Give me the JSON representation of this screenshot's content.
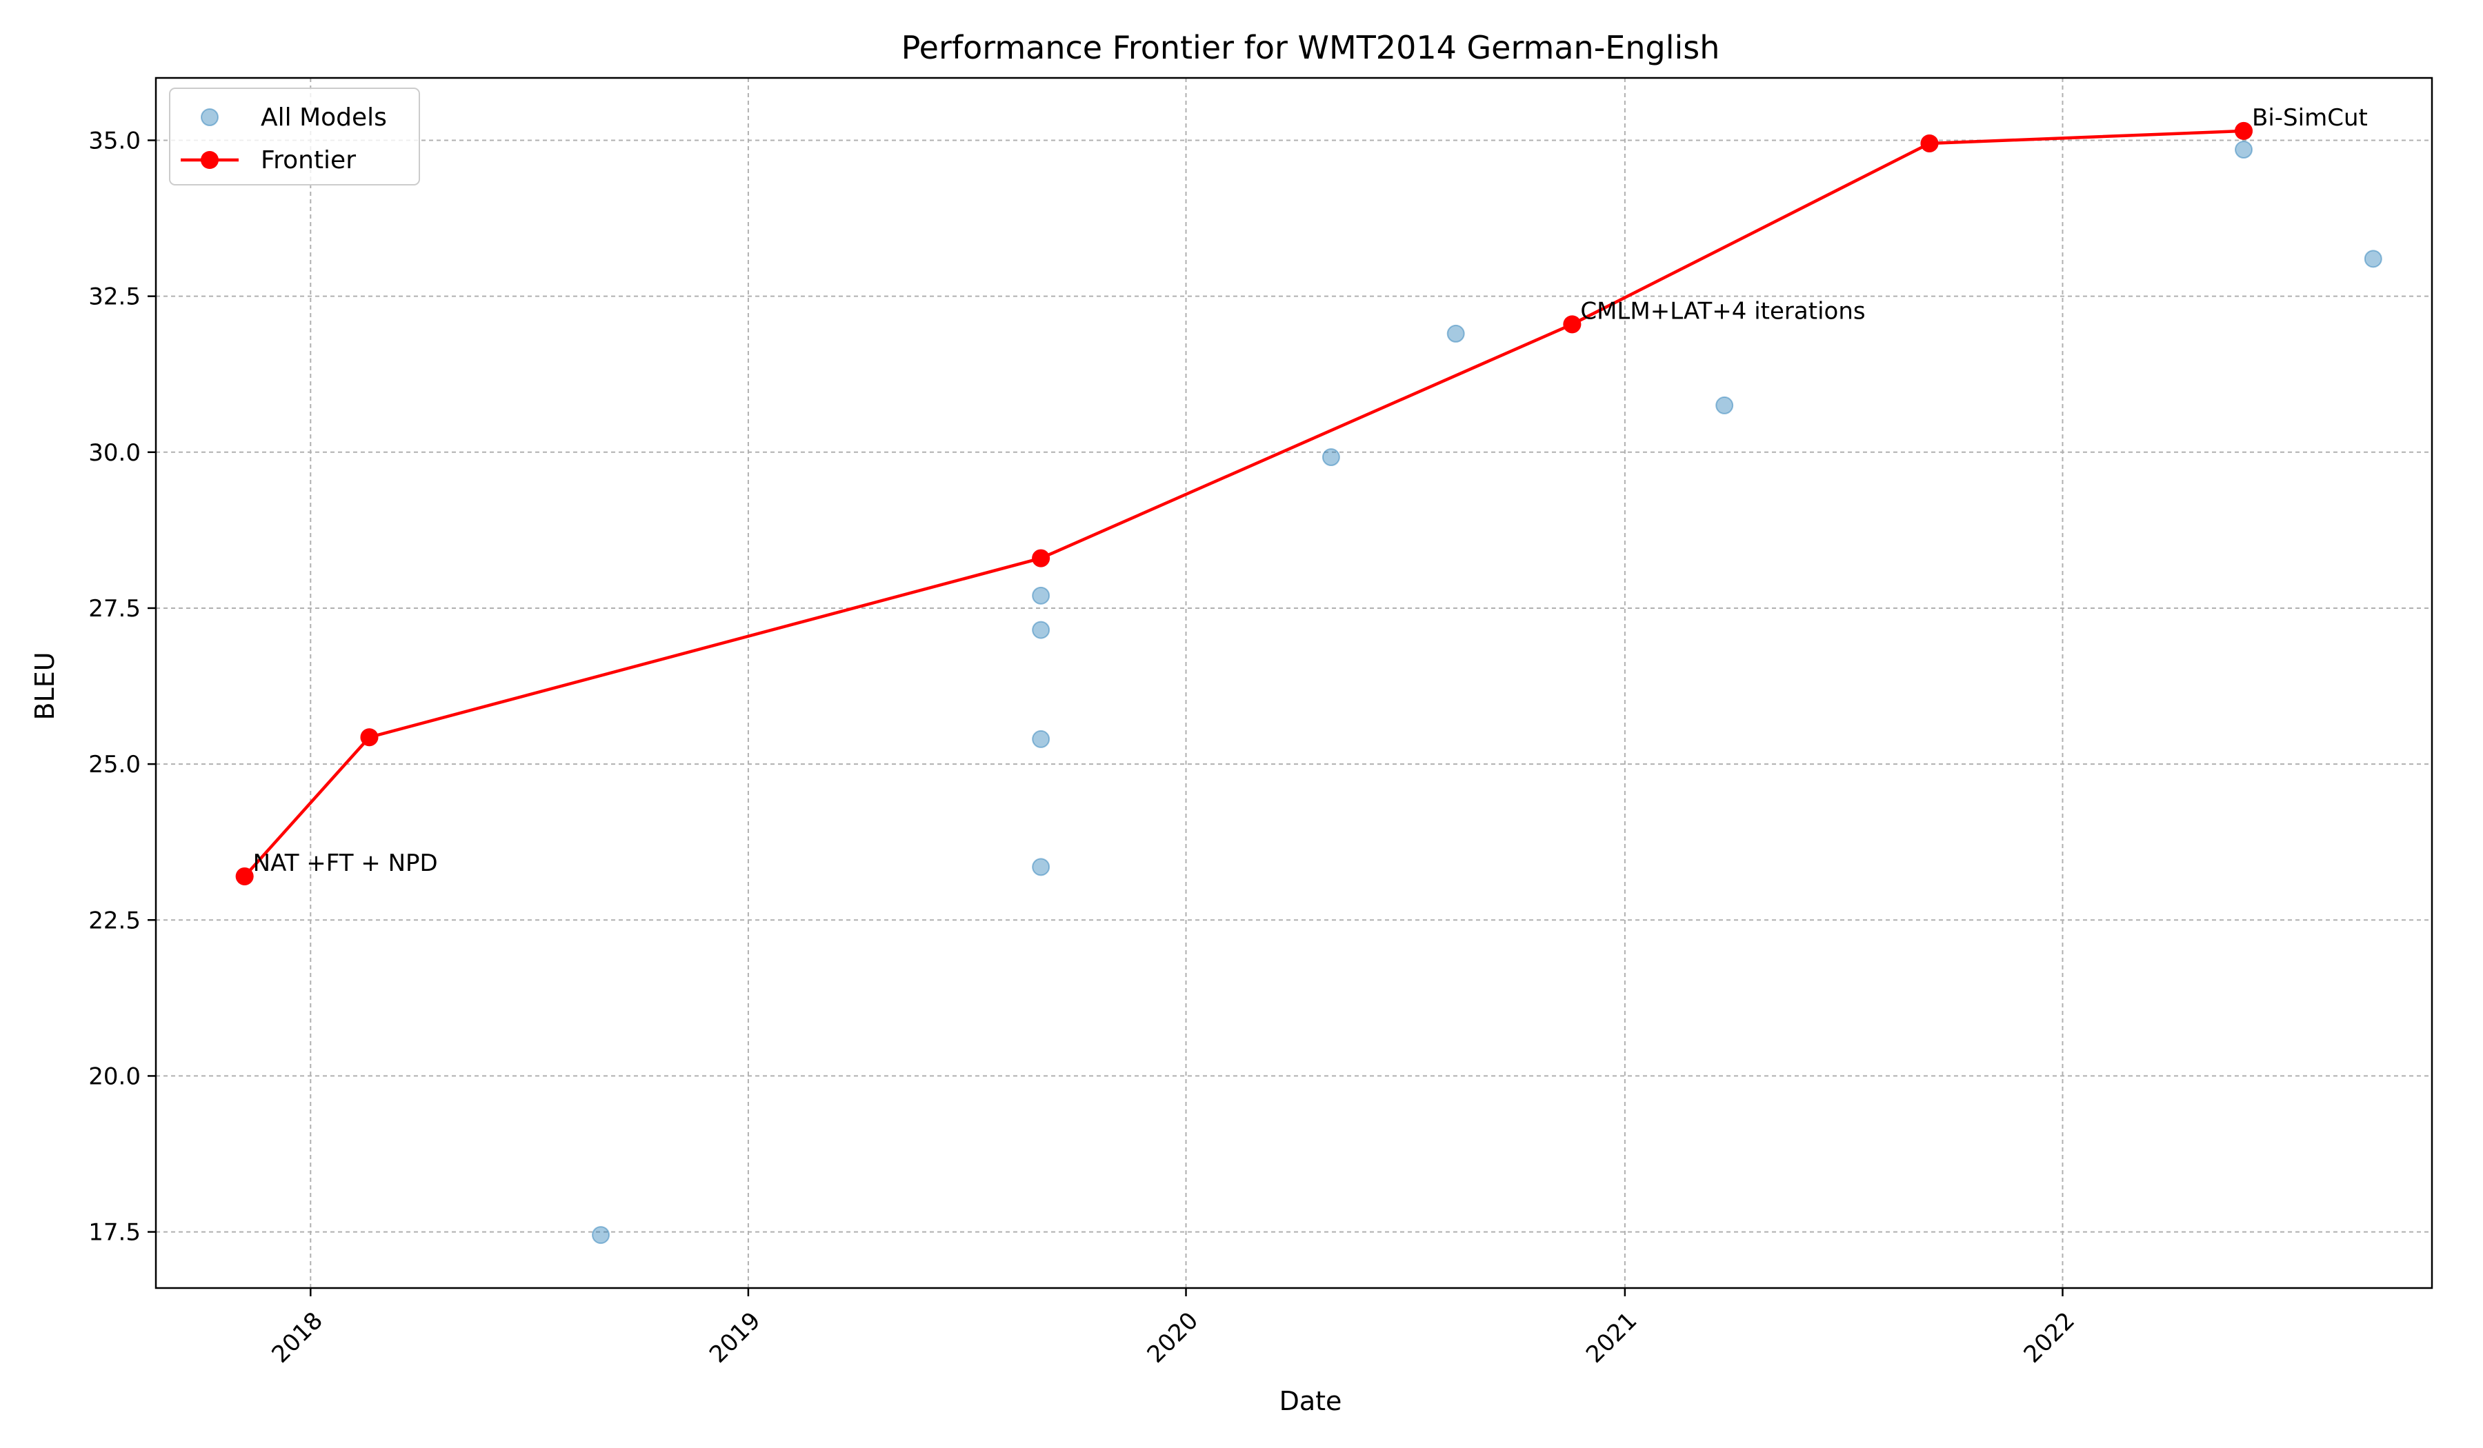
{
  "chart_data": {
    "type": "scatter",
    "title": "Performance Frontier for WMT2014 German-English",
    "xlabel": "Date",
    "ylabel": "BLEU",
    "x_is_date": true,
    "xlim": [
      "2017-08-25",
      "2022-11-05"
    ],
    "ylim": [
      16.6,
      36.0
    ],
    "x_ticks": [
      "2018",
      "2019",
      "2020",
      "2021",
      "2022"
    ],
    "y_ticks": [
      "17.5",
      "20.0",
      "22.5",
      "25.0",
      "27.5",
      "30.0",
      "32.5",
      "35.0"
    ],
    "grid": true,
    "legend_position": "top-left",
    "series": [
      {
        "name": "All Models",
        "kind": "scatter",
        "color": "#1f77b4",
        "points": [
          {
            "x": "2017-11-07",
            "y": 23.2
          },
          {
            "x": "2018-02-19",
            "y": 25.43
          },
          {
            "x": "2018-08-31",
            "y": 17.45
          },
          {
            "x": "2019-09-02",
            "y": 28.3
          },
          {
            "x": "2019-09-02",
            "y": 27.7
          },
          {
            "x": "2019-09-02",
            "y": 27.15
          },
          {
            "x": "2019-09-02",
            "y": 25.4
          },
          {
            "x": "2019-09-02",
            "y": 23.35
          },
          {
            "x": "2020-05-01",
            "y": 29.92
          },
          {
            "x": "2020-08-13",
            "y": 31.9
          },
          {
            "x": "2020-11-18",
            "y": 32.05
          },
          {
            "x": "2021-03-25",
            "y": 30.75
          },
          {
            "x": "2021-09-12",
            "y": 34.95
          },
          {
            "x": "2022-06-01",
            "y": 35.15
          },
          {
            "x": "2022-06-01",
            "y": 34.85
          },
          {
            "x": "2022-09-17",
            "y": 33.1
          }
        ]
      },
      {
        "name": "Frontier",
        "kind": "line",
        "color": "#ff0000",
        "points": [
          {
            "x": "2017-11-07",
            "y": 23.2
          },
          {
            "x": "2018-02-19",
            "y": 25.43
          },
          {
            "x": "2019-09-02",
            "y": 28.3
          },
          {
            "x": "2020-11-18",
            "y": 32.05
          },
          {
            "x": "2021-09-12",
            "y": 34.95
          },
          {
            "x": "2022-06-01",
            "y": 35.15
          }
        ]
      }
    ],
    "annotations": [
      {
        "text": "NAT +FT + NPD",
        "x": "2017-11-07",
        "y": 23.2
      },
      {
        "text": "CMLM+LAT+4 iterations",
        "x": "2020-11-18",
        "y": 32.05
      },
      {
        "text": "Bi-SimCut",
        "x": "2022-06-01",
        "y": 35.15
      }
    ]
  }
}
